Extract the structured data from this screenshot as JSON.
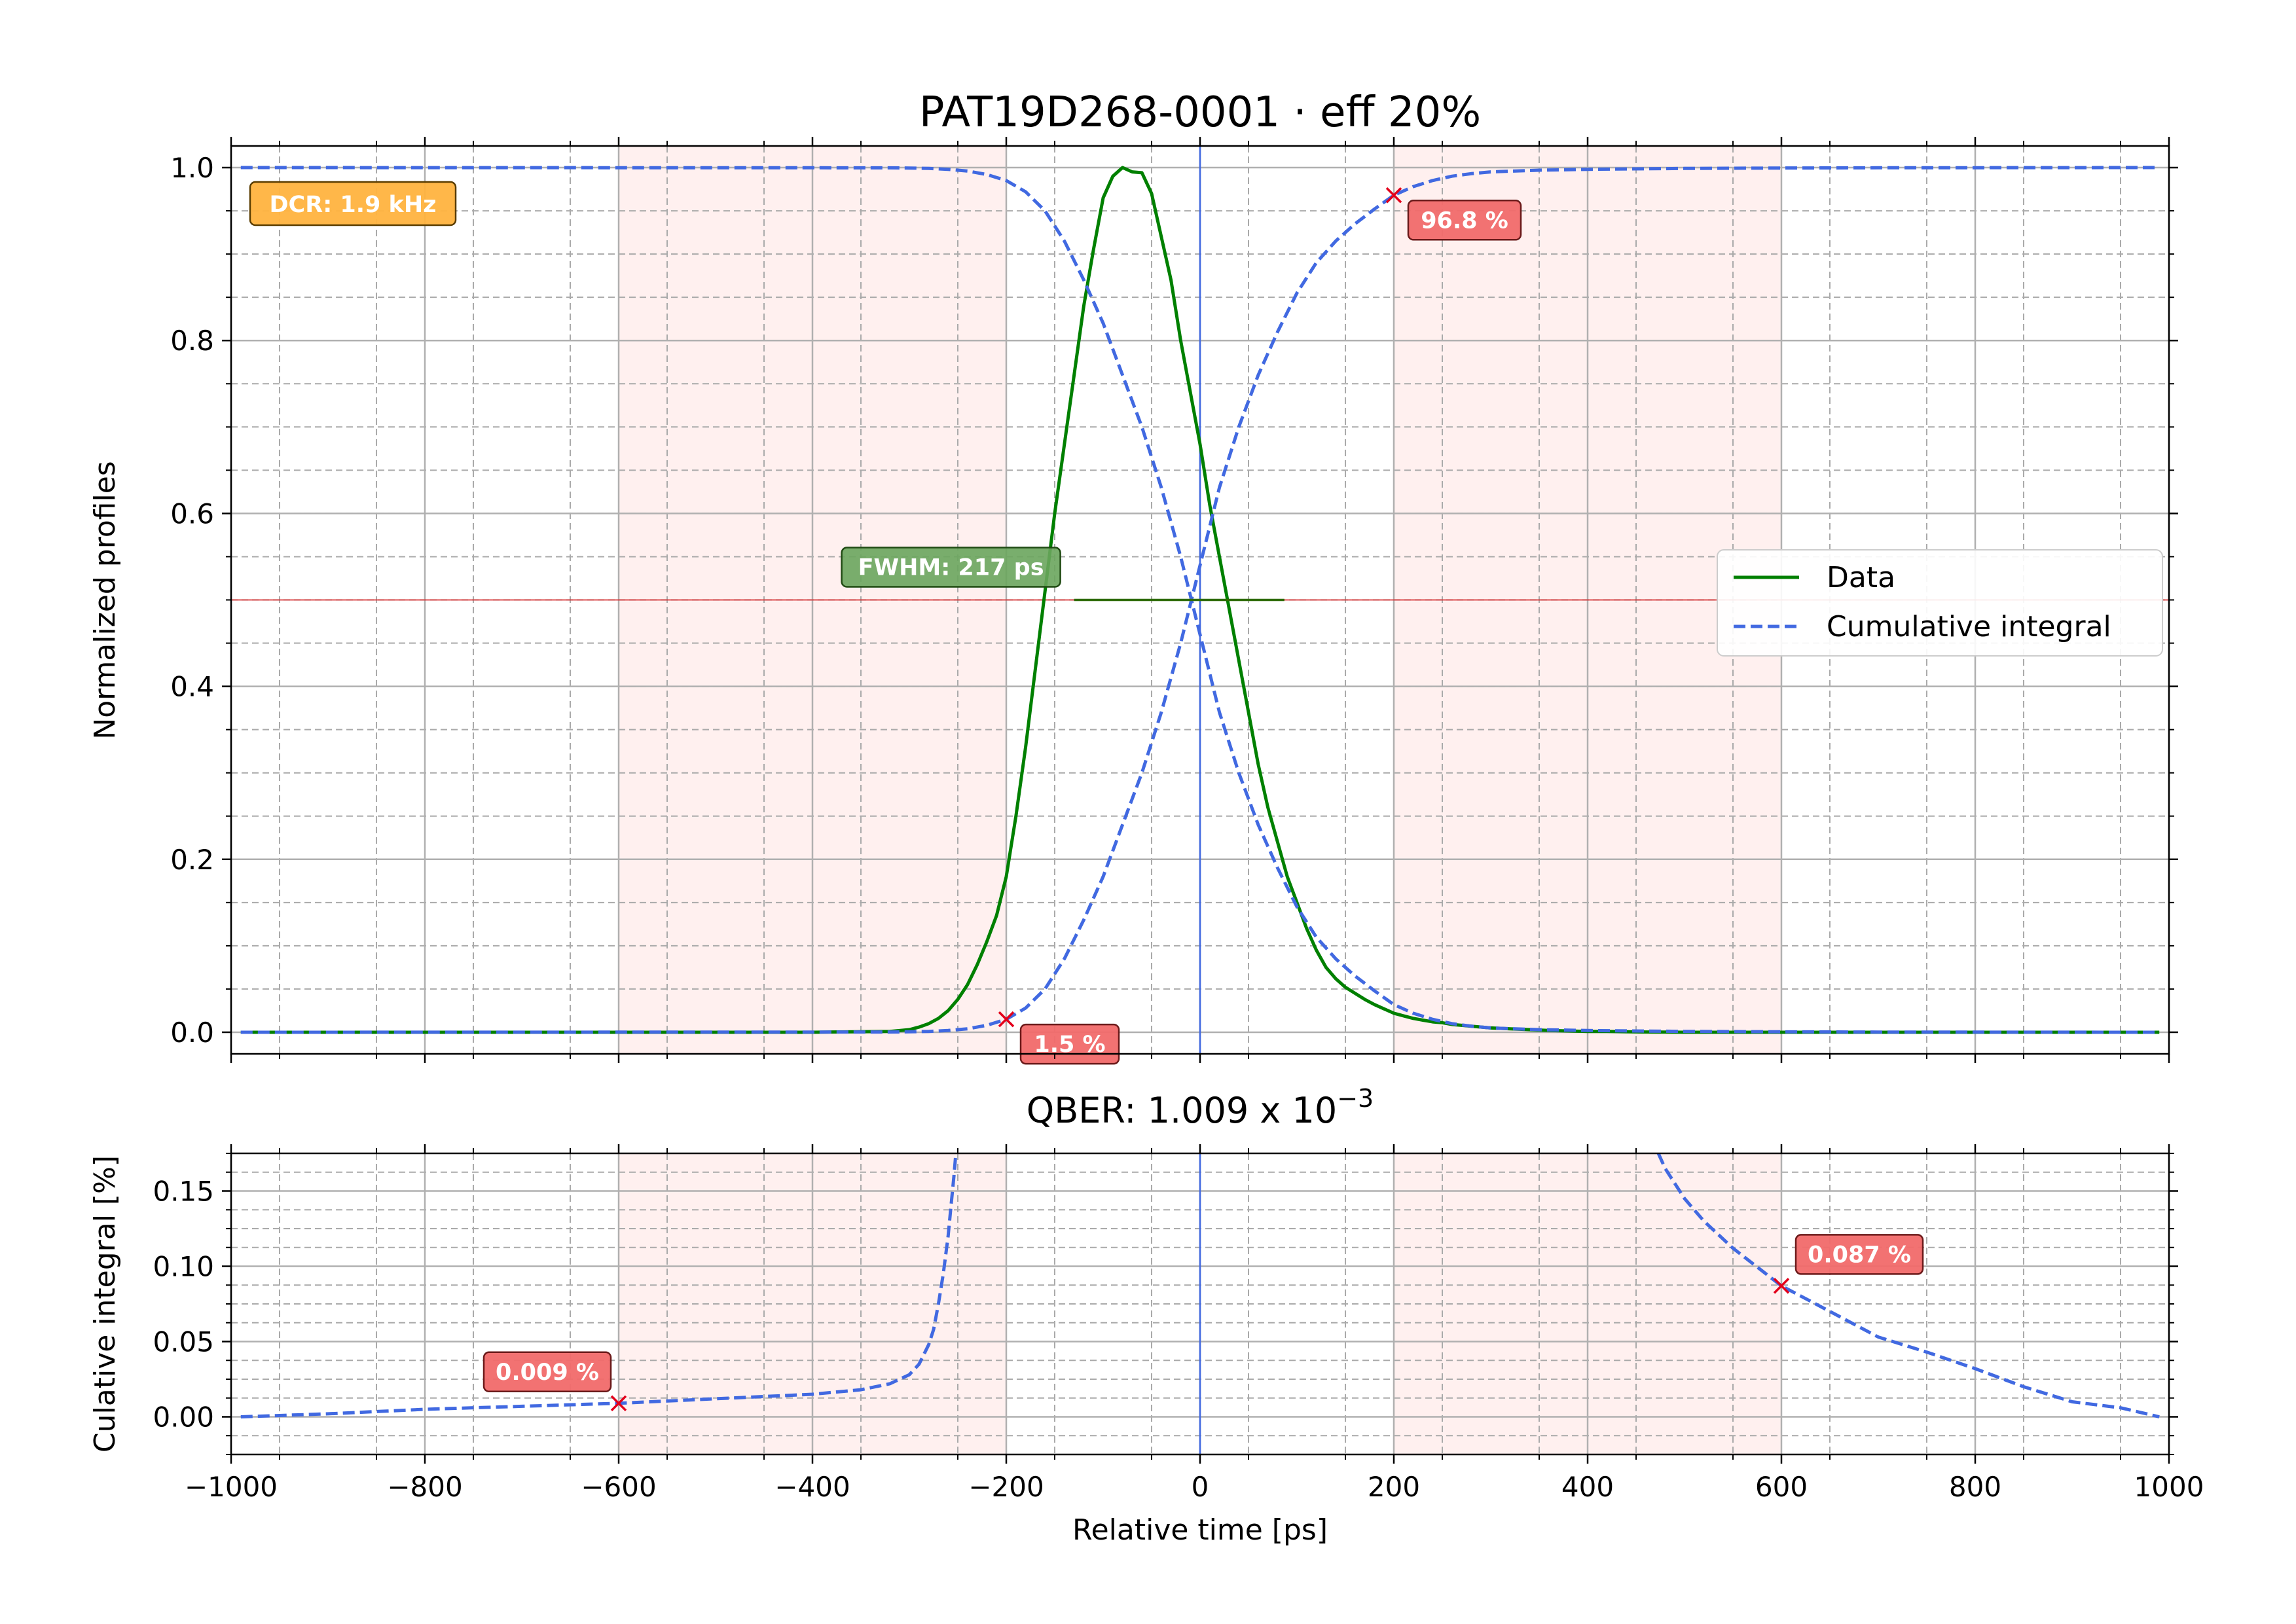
{
  "chart_data": [
    {
      "type": "line",
      "title": "PAT19D268-0001 · eff 20%",
      "ylabel": "Normalized profiles",
      "xlim": [
        -1000,
        1000
      ],
      "ylim": [
        -0.025,
        1.025
      ],
      "x_ticks": [
        "−1000",
        "−800",
        "−600",
        "−400",
        "−200",
        "0",
        "200",
        "400",
        "600",
        "800",
        "1000"
      ],
      "y_ticks": [
        {
          "value": 0.0,
          "label": "0.0"
        },
        {
          "value": 0.2,
          "label": "0.2"
        },
        {
          "value": 0.4,
          "label": "0.4"
        },
        {
          "value": 0.6,
          "label": "0.6"
        },
        {
          "value": 0.8,
          "label": "0.8"
        },
        {
          "value": 1.0,
          "label": "1.0"
        }
      ],
      "grid": true,
      "legend_position": "center-right",
      "shaded_ranges": [
        [
          -600,
          -200
        ],
        [
          200,
          600
        ]
      ],
      "series": [
        {
          "name": "Data",
          "color": "#008000",
          "style": "solid",
          "x": [
            -990,
            -600,
            -400,
            -320,
            -300,
            -290,
            -280,
            -270,
            -260,
            -250,
            -240,
            -230,
            -220,
            -210,
            -200,
            -190,
            -180,
            -170,
            -160,
            -150,
            -140,
            -130,
            -120,
            -110,
            -100,
            -90,
            -80,
            -70,
            -60,
            -50,
            -40,
            -30,
            -20,
            -10,
            0,
            10,
            20,
            30,
            40,
            50,
            60,
            70,
            80,
            90,
            100,
            110,
            120,
            130,
            140,
            150,
            160,
            170,
            180,
            190,
            200,
            210,
            220,
            230,
            240,
            250,
            260,
            270,
            280,
            300,
            320,
            340,
            360,
            380,
            400,
            420,
            440,
            460,
            480,
            500,
            550,
            600,
            700,
            800,
            990
          ],
          "values": [
            0,
            0,
            0,
            0.001,
            0.003,
            0.006,
            0.01,
            0.016,
            0.025,
            0.038,
            0.055,
            0.078,
            0.105,
            0.135,
            0.18,
            0.25,
            0.33,
            0.42,
            0.51,
            0.6,
            0.68,
            0.76,
            0.84,
            0.905,
            0.965,
            0.99,
            1.0,
            0.995,
            0.994,
            0.97,
            0.92,
            0.87,
            0.8,
            0.74,
            0.68,
            0.61,
            0.55,
            0.49,
            0.43,
            0.37,
            0.31,
            0.26,
            0.22,
            0.18,
            0.15,
            0.12,
            0.095,
            0.075,
            0.062,
            0.052,
            0.045,
            0.038,
            0.032,
            0.027,
            0.022,
            0.019,
            0.016,
            0.014,
            0.012,
            0.011,
            0.009,
            0.008,
            0.007,
            0.005,
            0.004,
            0.003,
            0.002,
            0.0015,
            0.001,
            0.001,
            0.0005,
            0.0003,
            0.0002,
            0,
            0,
            0,
            0,
            0,
            0
          ]
        },
        {
          "name": "Cumulative integral",
          "color": "#4169e1",
          "style": "dashed",
          "x": [
            -990,
            -600,
            -400,
            -320,
            -300,
            -280,
            -260,
            -240,
            -220,
            -200,
            -180,
            -160,
            -140,
            -120,
            -100,
            -80,
            -60,
            -40,
            -20,
            0,
            20,
            40,
            60,
            80,
            100,
            120,
            140,
            160,
            180,
            200,
            220,
            240,
            260,
            280,
            300,
            350,
            400,
            500,
            600,
            700,
            800,
            990
          ],
          "values": [
            0,
            0.0001,
            0.0002,
            0.0003,
            0.0005,
            0.001,
            0.002,
            0.004,
            0.008,
            0.015,
            0.028,
            0.05,
            0.085,
            0.13,
            0.18,
            0.24,
            0.3,
            0.37,
            0.45,
            0.54,
            0.63,
            0.7,
            0.76,
            0.81,
            0.855,
            0.89,
            0.915,
            0.935,
            0.952,
            0.968,
            0.978,
            0.985,
            0.99,
            0.993,
            0.995,
            0.997,
            0.998,
            0.999,
            0.9995,
            0.9998,
            0.9999,
            1.0
          ]
        },
        {
          "name": "",
          "color": "#4169e1",
          "style": "dashed",
          "x": [
            -990,
            -600,
            -400,
            -320,
            -300,
            -280,
            -260,
            -240,
            -220,
            -200,
            -180,
            -160,
            -140,
            -120,
            -100,
            -80,
            -60,
            -40,
            -20,
            0,
            20,
            40,
            60,
            80,
            100,
            120,
            140,
            160,
            180,
            200,
            220,
            240,
            260,
            280,
            300,
            350,
            400,
            500,
            600,
            700,
            800,
            990
          ],
          "values": [
            1.0,
            0.9999,
            0.9998,
            0.9997,
            0.9995,
            0.999,
            0.998,
            0.996,
            0.992,
            0.985,
            0.972,
            0.95,
            0.915,
            0.87,
            0.82,
            0.76,
            0.7,
            0.63,
            0.55,
            0.46,
            0.37,
            0.3,
            0.24,
            0.19,
            0.145,
            0.11,
            0.085,
            0.065,
            0.048,
            0.032,
            0.022,
            0.015,
            0.01,
            0.007,
            0.005,
            0.003,
            0.002,
            0.001,
            0.0005,
            0.0002,
            0.0001,
            0
          ]
        }
      ],
      "markers": [
        {
          "x": -200,
          "y": 0.015,
          "label": "1.5 %"
        },
        {
          "x": 200,
          "y": 0.968,
          "label": "96.8 %"
        }
      ],
      "fwhm": {
        "x_start": -130,
        "x_end": 87,
        "y": 0.5,
        "label": "FWHM: 217 ps"
      },
      "dcr_label": "DCR: 1.9 kHz",
      "hline_y": 0.5,
      "vline_x": 0
    },
    {
      "type": "line",
      "title_prefix": "QBER: 1.009 x 10",
      "title_exponent": "−3",
      "xlabel": "Relative time [ps]",
      "ylabel": "Culative integral [%]",
      "xlim": [
        -1000,
        1000
      ],
      "ylim": [
        -0.025,
        0.175
      ],
      "x_ticks": [
        "−1000",
        "−800",
        "−600",
        "−400",
        "−200",
        "0",
        "200",
        "400",
        "600",
        "800",
        "1000"
      ],
      "y_ticks": [
        {
          "value": 0.0,
          "label": "0.00"
        },
        {
          "value": 0.05,
          "label": "0.05"
        },
        {
          "value": 0.1,
          "label": "0.10"
        },
        {
          "value": 0.15,
          "label": "0.15"
        }
      ],
      "grid": true,
      "shaded_ranges": [
        [
          -600,
          -200
        ],
        [
          200,
          600
        ]
      ],
      "series": [
        {
          "name": "",
          "color": "#4169e1",
          "style": "dashed",
          "x": [
            -990,
            -900,
            -800,
            -700,
            -600,
            -500,
            -400,
            -350,
            -320,
            -300,
            -290,
            -280,
            -275,
            -270,
            -265,
            -260,
            -257,
            -254,
            -252
          ],
          "values": [
            0,
            0.002,
            0.005,
            0.007,
            0.009,
            0.012,
            0.015,
            0.018,
            0.022,
            0.028,
            0.035,
            0.048,
            0.058,
            0.075,
            0.095,
            0.12,
            0.14,
            0.16,
            0.175
          ]
        },
        {
          "name": "",
          "color": "#4169e1",
          "style": "dashed",
          "x": [
            473,
            480,
            500,
            520,
            550,
            580,
            600,
            650,
            700,
            750,
            800,
            850,
            900,
            950,
            990
          ],
          "values": [
            0.175,
            0.165,
            0.145,
            0.13,
            0.112,
            0.097,
            0.087,
            0.07,
            0.053,
            0.043,
            0.032,
            0.02,
            0.01,
            0.006,
            0.0
          ]
        }
      ],
      "markers": [
        {
          "x": -600,
          "y": 0.009,
          "label": "0.009 %"
        },
        {
          "x": 600,
          "y": 0.087,
          "label": "0.087 %"
        }
      ],
      "vline_x": 0
    }
  ]
}
